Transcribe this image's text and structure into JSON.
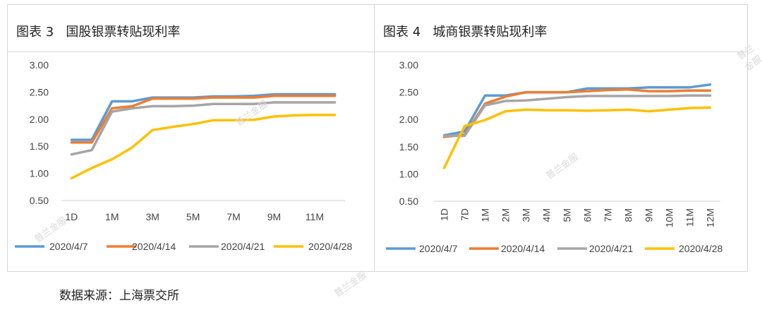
{
  "source": "数据来源：上海票交所",
  "watermarks": [
    "普兰金服",
    "普兰金服",
    "普兰金服",
    "普兰金服",
    "普兰金服"
  ],
  "colors": {
    "2020/4/7": "#5b9bd5",
    "2020/4/14": "#ed7d31",
    "2020/4/21": "#a5a5a5",
    "2020/4/28": "#ffc000"
  },
  "chart_data": [
    {
      "type": "line",
      "title": "图表 3   国股银票转贴现利率",
      "categories": [
        "1D",
        "",
        "1M",
        "",
        "3M",
        "",
        "5M",
        "",
        "7M",
        "",
        "9M",
        "",
        "11M",
        ""
      ],
      "ylim": [
        0.5,
        3.0
      ],
      "yticks": [
        "3.00",
        "2.50",
        "2.00",
        "1.50",
        "1.00",
        "0.50"
      ],
      "ytick_values": [
        3.0,
        2.5,
        2.0,
        1.5,
        1.0,
        0.5
      ],
      "x_label_rotation": 0,
      "series": [
        {
          "name": "2020/4/7",
          "values": [
            1.62,
            1.62,
            2.33,
            2.33,
            2.4,
            2.4,
            2.4,
            2.42,
            2.42,
            2.43,
            2.46,
            2.46,
            2.46,
            2.46
          ]
        },
        {
          "name": "2020/4/14",
          "values": [
            1.57,
            1.57,
            2.2,
            2.24,
            2.38,
            2.38,
            2.38,
            2.4,
            2.4,
            2.4,
            2.43,
            2.43,
            2.43,
            2.43
          ]
        },
        {
          "name": "2020/4/21",
          "values": [
            1.35,
            1.43,
            2.14,
            2.2,
            2.24,
            2.24,
            2.25,
            2.28,
            2.28,
            2.28,
            2.31,
            2.31,
            2.31,
            2.31
          ]
        },
        {
          "name": "2020/4/28",
          "values": [
            0.91,
            1.1,
            1.26,
            1.48,
            1.8,
            1.86,
            1.91,
            1.98,
            1.98,
            1.99,
            2.05,
            2.07,
            2.08,
            2.08
          ]
        }
      ]
    },
    {
      "type": "line",
      "title": "图表 4   城商银票转贴现利率",
      "categories": [
        "1D",
        "7D",
        "1M",
        "2M",
        "3M",
        "4M",
        "5M",
        "6M",
        "7M",
        "8M",
        "9M",
        "10M",
        "11M",
        "12M"
      ],
      "ylim": [
        0.5,
        3.0
      ],
      "yticks": [
        "3.00",
        "2.50",
        "2.00",
        "1.50",
        "1.00",
        "0.50"
      ],
      "ytick_values": [
        3.0,
        2.5,
        2.0,
        1.5,
        1.0,
        0.5
      ],
      "x_label_rotation": -90,
      "series": [
        {
          "name": "2020/4/7",
          "values": [
            1.71,
            1.78,
            2.44,
            2.44,
            2.5,
            2.5,
            2.5,
            2.57,
            2.57,
            2.57,
            2.59,
            2.59,
            2.59,
            2.64
          ]
        },
        {
          "name": "2020/4/14",
          "values": [
            1.68,
            1.72,
            2.29,
            2.42,
            2.5,
            2.5,
            2.5,
            2.52,
            2.54,
            2.55,
            2.52,
            2.52,
            2.53,
            2.53
          ]
        },
        {
          "name": "2020/4/21",
          "values": [
            1.7,
            1.7,
            2.26,
            2.34,
            2.35,
            2.38,
            2.41,
            2.43,
            2.43,
            2.43,
            2.43,
            2.43,
            2.44,
            2.44
          ]
        },
        {
          "name": "2020/4/28",
          "values": [
            1.11,
            1.88,
            1.99,
            2.15,
            2.18,
            2.17,
            2.17,
            2.16,
            2.17,
            2.18,
            2.15,
            2.18,
            2.21,
            2.22
          ]
        }
      ]
    }
  ]
}
